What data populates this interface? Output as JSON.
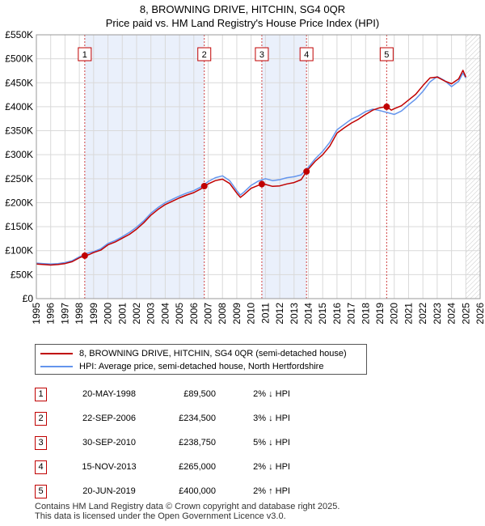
{
  "title_line1": "8, BROWNING DRIVE, HITCHIN, SG4 0QR",
  "title_line2": "Price paid vs. HM Land Registry's House Price Index (HPI)",
  "chart_data": {
    "type": "line",
    "ylim": [
      0,
      550000
    ],
    "xlim": [
      1995,
      2026
    ],
    "yticks": [
      0,
      50000,
      100000,
      150000,
      200000,
      250000,
      300000,
      350000,
      400000,
      450000,
      500000,
      550000
    ],
    "ytick_labels": [
      "£0",
      "£50K",
      "£100K",
      "£150K",
      "£200K",
      "£250K",
      "£300K",
      "£350K",
      "£400K",
      "£450K",
      "£500K",
      "£550K"
    ],
    "xticks": [
      1995,
      1996,
      1997,
      1998,
      1999,
      2000,
      2001,
      2002,
      2003,
      2004,
      2005,
      2006,
      2007,
      2008,
      2009,
      2010,
      2011,
      2012,
      2013,
      2014,
      2015,
      2016,
      2017,
      2018,
      2019,
      2020,
      2021,
      2022,
      2023,
      2024,
      2025,
      2026
    ],
    "grid": true,
    "series": [
      {
        "name": "8, BROWNING DRIVE, HITCHIN, SG4 0QR (semi-detached house)",
        "color": "#c00000",
        "x": [
          1995.0,
          1995.5,
          1996.0,
          1996.5,
          1997.0,
          1997.5,
          1998.0,
          1998.38,
          1998.7,
          1999.0,
          1999.5,
          2000.0,
          2000.5,
          2001.0,
          2001.5,
          2002.0,
          2002.5,
          2003.0,
          2003.5,
          2004.0,
          2004.5,
          2005.0,
          2005.5,
          2006.0,
          2006.5,
          2006.73,
          2007.0,
          2007.5,
          2008.0,
          2008.5,
          2009.0,
          2009.25,
          2009.5,
          2010.0,
          2010.5,
          2010.75,
          2011.0,
          2011.5,
          2012.0,
          2012.5,
          2013.0,
          2013.5,
          2013.87,
          2014.0,
          2014.5,
          2015.0,
          2015.5,
          2016.0,
          2016.5,
          2017.0,
          2017.5,
          2018.0,
          2018.5,
          2019.0,
          2019.47,
          2019.8,
          2020.0,
          2020.5,
          2021.0,
          2021.5,
          2022.0,
          2022.5,
          2023.0,
          2023.5,
          2024.0,
          2024.5,
          2024.8,
          2025.0
        ],
        "y": [
          72000,
          71000,
          70000,
          71000,
          73000,
          77000,
          85000,
          89500,
          92000,
          96000,
          101000,
          112000,
          118000,
          126000,
          134000,
          145000,
          158000,
          174000,
          186000,
          196000,
          203000,
          210000,
          216000,
          221000,
          229000,
          234500,
          239000,
          246000,
          249000,
          240000,
          220000,
          211000,
          217000,
          230000,
          236000,
          238750,
          238000,
          234000,
          235000,
          239000,
          242000,
          248000,
          265000,
          270000,
          287000,
          300000,
          318000,
          345000,
          356000,
          366000,
          374000,
          384000,
          393000,
          398000,
          400000,
          393000,
          396000,
          402000,
          414000,
          426000,
          444000,
          460000,
          462000,
          454000,
          448000,
          458000,
          476000,
          462000
        ]
      },
      {
        "name": "HPI: Average price, semi-detached house, North Hertfordshire",
        "color": "#6495ed",
        "x": [
          1995.0,
          1995.5,
          1996.0,
          1996.5,
          1997.0,
          1997.5,
          1998.0,
          1998.5,
          1999.0,
          1999.5,
          2000.0,
          2000.5,
          2001.0,
          2001.5,
          2002.0,
          2002.5,
          2003.0,
          2003.5,
          2004.0,
          2004.5,
          2005.0,
          2005.5,
          2006.0,
          2006.5,
          2007.0,
          2007.5,
          2008.0,
          2008.5,
          2009.0,
          2009.25,
          2009.5,
          2010.0,
          2010.5,
          2011.0,
          2011.5,
          2012.0,
          2012.5,
          2013.0,
          2013.5,
          2014.0,
          2014.5,
          2015.0,
          2015.5,
          2016.0,
          2016.5,
          2017.0,
          2017.5,
          2018.0,
          2018.5,
          2019.0,
          2019.5,
          2020.0,
          2020.5,
          2021.0,
          2021.5,
          2022.0,
          2022.5,
          2023.0,
          2023.5,
          2024.0,
          2024.5,
          2024.8,
          2025.0
        ],
        "y": [
          74000,
          73000,
          72000,
          73000,
          75000,
          79000,
          87000,
          94000,
          98000,
          104000,
          115000,
          121000,
          129000,
          138000,
          149000,
          162000,
          178000,
          190000,
          200000,
          207000,
          214000,
          220000,
          225000,
          233000,
          244000,
          252000,
          256000,
          246000,
          225000,
          216000,
          222000,
          236000,
          245000,
          250000,
          246000,
          248000,
          252000,
          254000,
          258000,
          274000,
          292000,
          307000,
          326000,
          352000,
          363000,
          374000,
          381000,
          390000,
          395000,
          392000,
          388000,
          384000,
          391000,
          404000,
          416000,
          432000,
          452000,
          463000,
          455000,
          442000,
          453000,
          470000,
          460000
        ]
      }
    ],
    "annotations": [
      {
        "label": "1",
        "x": 1998.38
      },
      {
        "label": "2",
        "x": 2006.73
      },
      {
        "label": "3",
        "x": 2010.75
      },
      {
        "label": "4",
        "x": 2013.87
      },
      {
        "label": "5",
        "x": 2019.47
      }
    ],
    "sale_points": [
      {
        "x": 1998.38,
        "y": 89500
      },
      {
        "x": 2006.73,
        "y": 234500
      },
      {
        "x": 2010.75,
        "y": 238750
      },
      {
        "x": 2013.87,
        "y": 265000
      },
      {
        "x": 2019.47,
        "y": 400000
      }
    ],
    "shade_intervals": [
      [
        1998.38,
        2006.73
      ],
      [
        2010.75,
        2013.87
      ]
    ],
    "forecast_from": 2025.0
  },
  "legend": {
    "property": "8, BROWNING DRIVE, HITCHIN, SG4 0QR (semi-detached house)",
    "hpi": "HPI: Average price, semi-detached house, North Hertfordshire"
  },
  "sales": [
    {
      "num": "1",
      "date": "20-MAY-1998",
      "price": "£89,500",
      "hpi": "2% ↓ HPI"
    },
    {
      "num": "2",
      "date": "22-SEP-2006",
      "price": "£234,500",
      "hpi": "3% ↓ HPI"
    },
    {
      "num": "3",
      "date": "30-SEP-2010",
      "price": "£238,750",
      "hpi": "5% ↓ HPI"
    },
    {
      "num": "4",
      "date": "15-NOV-2013",
      "price": "£265,000",
      "hpi": "2% ↓ HPI"
    },
    {
      "num": "5",
      "date": "20-JUN-2019",
      "price": "£400,000",
      "hpi": "2% ↑ HPI"
    }
  ],
  "footer": {
    "line1": "Contains HM Land Registry data © Crown copyright and database right 2025.",
    "line2": "This data is licensed under the Open Government Licence v3.0."
  }
}
